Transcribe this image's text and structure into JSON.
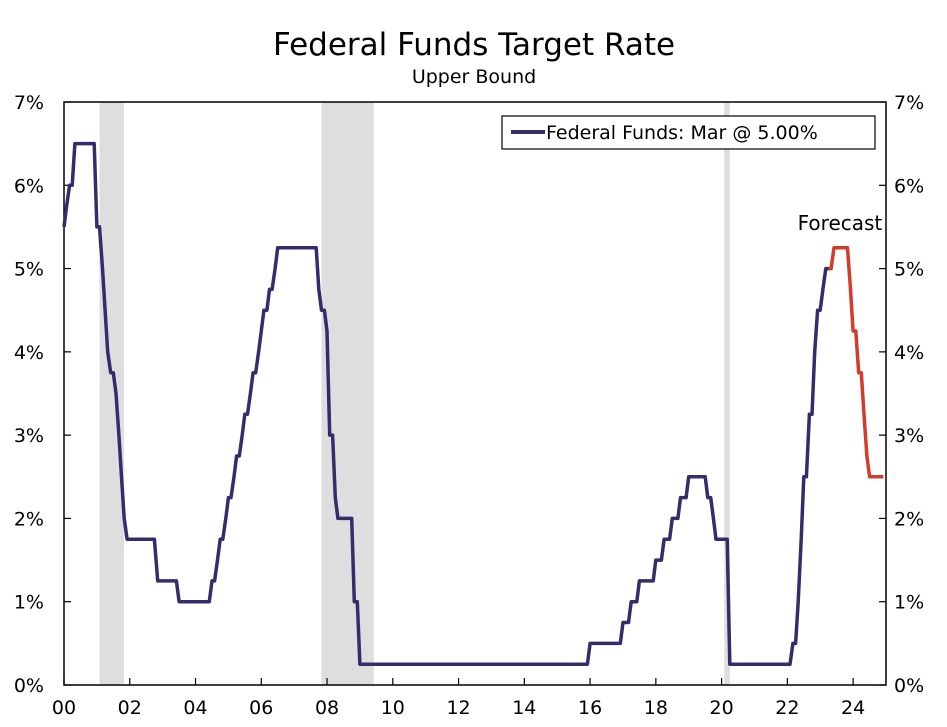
{
  "chart_data": {
    "type": "line",
    "title": "Federal Funds Target Rate",
    "subtitle": "Upper Bound",
    "xlabel": "",
    "ylabel": "",
    "x_range": [
      2000.0,
      2025.0
    ],
    "ylim": [
      0,
      7
    ],
    "y_ticks": [
      0,
      1,
      2,
      3,
      4,
      5,
      6,
      7
    ],
    "y_tick_labels": [
      "0%",
      "1%",
      "2%",
      "3%",
      "4%",
      "5%",
      "6%",
      "7%"
    ],
    "x_ticks": [
      2000,
      2002,
      2004,
      2006,
      2008,
      2010,
      2012,
      2014,
      2016,
      2018,
      2020,
      2022,
      2024
    ],
    "x_tick_labels": [
      "00",
      "02",
      "04",
      "06",
      "08",
      "10",
      "12",
      "14",
      "16",
      "18",
      "20",
      "22",
      "24"
    ],
    "grid": false,
    "legend": {
      "position": "top-right",
      "entries": [
        "Federal Funds: Mar @ 5.00%"
      ]
    },
    "recessions": [
      [
        2001.08,
        2001.83
      ],
      [
        2007.83,
        2009.42
      ],
      [
        2020.08,
        2020.25
      ]
    ],
    "annotations": [
      {
        "text": "Forecast",
        "x": 2023.6,
        "y": 5.55
      }
    ],
    "colors": {
      "actual": "#342c6b",
      "forecast": "#d23c2a",
      "recession": "#dedede"
    },
    "series": [
      {
        "name": "Federal Funds: Mar @ 5.00%",
        "role": "actual",
        "points": [
          [
            2000.0,
            5.5
          ],
          [
            2000.08,
            5.75
          ],
          [
            2000.17,
            6.0
          ],
          [
            2000.25,
            6.0
          ],
          [
            2000.33,
            6.5
          ],
          [
            2000.92,
            6.5
          ],
          [
            2001.0,
            5.5
          ],
          [
            2001.08,
            5.5
          ],
          [
            2001.17,
            5.0
          ],
          [
            2001.25,
            4.5
          ],
          [
            2001.33,
            4.0
          ],
          [
            2001.42,
            3.75
          ],
          [
            2001.5,
            3.75
          ],
          [
            2001.58,
            3.5
          ],
          [
            2001.67,
            3.0
          ],
          [
            2001.75,
            2.5
          ],
          [
            2001.83,
            2.0
          ],
          [
            2001.92,
            1.75
          ],
          [
            2002.75,
            1.75
          ],
          [
            2002.85,
            1.25
          ],
          [
            2003.42,
            1.25
          ],
          [
            2003.5,
            1.0
          ],
          [
            2004.42,
            1.0
          ],
          [
            2004.5,
            1.25
          ],
          [
            2004.58,
            1.25
          ],
          [
            2004.67,
            1.5
          ],
          [
            2004.75,
            1.75
          ],
          [
            2004.83,
            1.75
          ],
          [
            2004.92,
            2.0
          ],
          [
            2005.0,
            2.25
          ],
          [
            2005.08,
            2.25
          ],
          [
            2005.17,
            2.5
          ],
          [
            2005.25,
            2.75
          ],
          [
            2005.33,
            2.75
          ],
          [
            2005.42,
            3.0
          ],
          [
            2005.5,
            3.25
          ],
          [
            2005.58,
            3.25
          ],
          [
            2005.67,
            3.5
          ],
          [
            2005.75,
            3.75
          ],
          [
            2005.83,
            3.75
          ],
          [
            2005.92,
            4.0
          ],
          [
            2006.0,
            4.25
          ],
          [
            2006.08,
            4.5
          ],
          [
            2006.17,
            4.5
          ],
          [
            2006.25,
            4.75
          ],
          [
            2006.33,
            4.75
          ],
          [
            2006.42,
            5.0
          ],
          [
            2006.5,
            5.25
          ],
          [
            2007.67,
            5.25
          ],
          [
            2007.75,
            4.75
          ],
          [
            2007.83,
            4.5
          ],
          [
            2007.92,
            4.5
          ],
          [
            2008.0,
            4.25
          ],
          [
            2008.08,
            3.0
          ],
          [
            2008.17,
            3.0
          ],
          [
            2008.25,
            2.25
          ],
          [
            2008.33,
            2.0
          ],
          [
            2008.75,
            2.0
          ],
          [
            2008.83,
            1.0
          ],
          [
            2008.92,
            1.0
          ],
          [
            2009.0,
            0.25
          ],
          [
            2015.92,
            0.25
          ],
          [
            2016.0,
            0.5
          ],
          [
            2016.92,
            0.5
          ],
          [
            2017.0,
            0.75
          ],
          [
            2017.17,
            0.75
          ],
          [
            2017.25,
            1.0
          ],
          [
            2017.42,
            1.0
          ],
          [
            2017.5,
            1.25
          ],
          [
            2017.92,
            1.25
          ],
          [
            2018.0,
            1.5
          ],
          [
            2018.17,
            1.5
          ],
          [
            2018.25,
            1.75
          ],
          [
            2018.42,
            1.75
          ],
          [
            2018.5,
            2.0
          ],
          [
            2018.67,
            2.0
          ],
          [
            2018.75,
            2.25
          ],
          [
            2018.92,
            2.25
          ],
          [
            2019.0,
            2.5
          ],
          [
            2019.5,
            2.5
          ],
          [
            2019.58,
            2.25
          ],
          [
            2019.67,
            2.25
          ],
          [
            2019.75,
            2.0
          ],
          [
            2019.83,
            1.75
          ],
          [
            2020.17,
            1.75
          ],
          [
            2020.25,
            0.25
          ],
          [
            2022.08,
            0.25
          ],
          [
            2022.17,
            0.5
          ],
          [
            2022.25,
            0.5
          ],
          [
            2022.33,
            1.0
          ],
          [
            2022.42,
            1.75
          ],
          [
            2022.5,
            2.5
          ],
          [
            2022.58,
            2.5
          ],
          [
            2022.67,
            3.25
          ],
          [
            2022.75,
            3.25
          ],
          [
            2022.83,
            4.0
          ],
          [
            2022.92,
            4.5
          ],
          [
            2023.0,
            4.5
          ],
          [
            2023.08,
            4.75
          ],
          [
            2023.17,
            5.0
          ],
          [
            2023.25,
            5.0
          ]
        ]
      },
      {
        "name": "",
        "role": "forecast",
        "points": [
          [
            2023.25,
            5.0
          ],
          [
            2023.33,
            5.0
          ],
          [
            2023.42,
            5.25
          ],
          [
            2023.83,
            5.25
          ],
          [
            2023.92,
            4.75
          ],
          [
            2024.0,
            4.25
          ],
          [
            2024.08,
            4.25
          ],
          [
            2024.17,
            3.75
          ],
          [
            2024.25,
            3.75
          ],
          [
            2024.33,
            3.25
          ],
          [
            2024.42,
            2.75
          ],
          [
            2024.5,
            2.5
          ],
          [
            2024.92,
            2.5
          ]
        ]
      }
    ]
  }
}
